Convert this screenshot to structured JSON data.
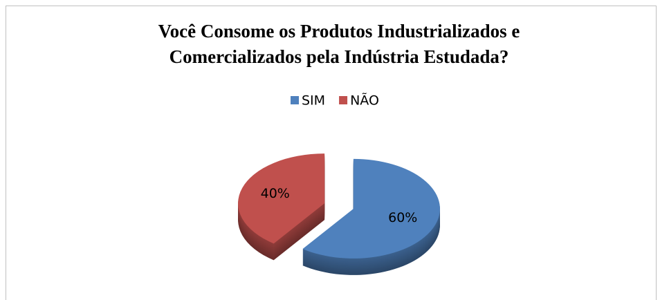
{
  "chart_data": {
    "type": "pie3d",
    "title": "Você Consome os Produtos Industrializados e Comercializados pela Indústria Estudada?",
    "title_lines": [
      "Você Consome os Produtos Industrializados e",
      "Comercializados pela Indústria Estudada?"
    ],
    "categories": [
      "SIM",
      "NÃO"
    ],
    "values": [
      60,
      40
    ],
    "value_labels": [
      "60%",
      "40%"
    ],
    "colors": [
      "#4f81bd",
      "#c0504d"
    ],
    "legend": "top"
  }
}
